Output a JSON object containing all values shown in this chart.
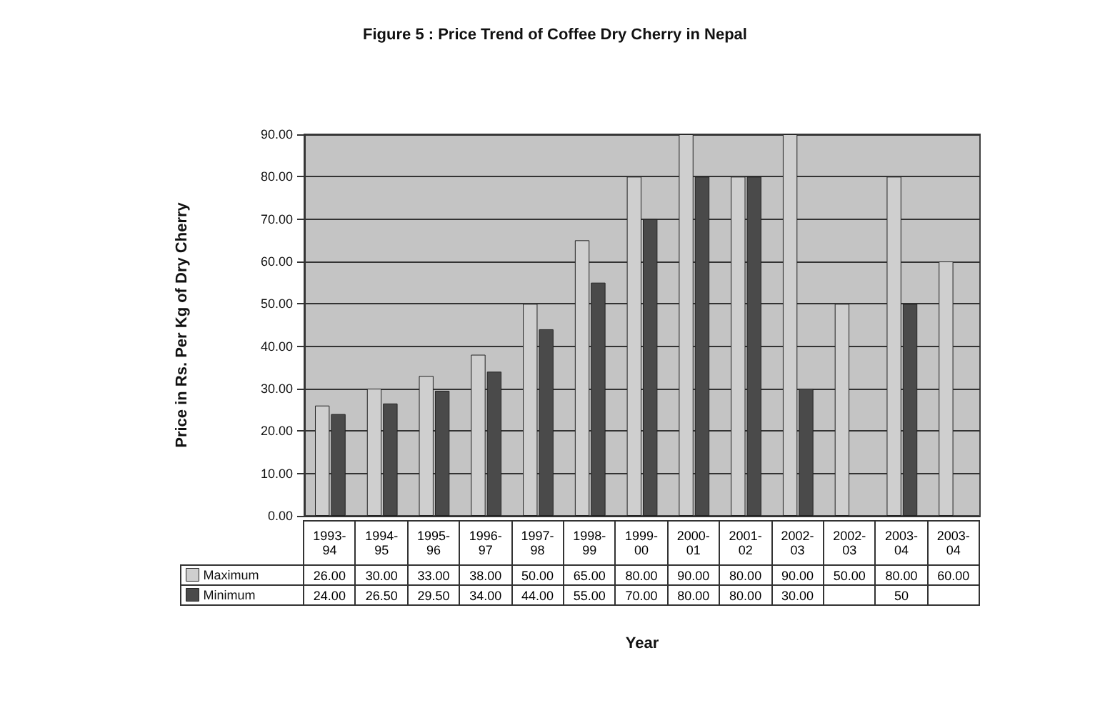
{
  "chart_data": {
    "type": "bar",
    "title": "Figure 5 : Price Trend of Coffee Dry Cherry in Nepal",
    "xlabel": "Year",
    "ylabel": "Price in Rs. Per Kg of Dry Cherry",
    "categories": [
      "1993-94",
      "1994-95",
      "1995-96",
      "1996-97",
      "1997-98",
      "1998-99",
      "1999-00",
      "2000-01",
      "2001-02",
      "2002-03",
      "2002-03",
      "2003-04",
      "2003-04"
    ],
    "series": [
      {
        "name": "Maximum",
        "color": "#cfcfcf",
        "values": [
          26,
          30,
          33,
          38,
          50,
          65,
          80,
          90,
          80,
          90,
          50,
          80,
          60
        ],
        "value_labels": [
          "26.00",
          "30.00",
          "33.00",
          "38.00",
          "50.00",
          "65.00",
          "80.00",
          "90.00",
          "80.00",
          "90.00",
          "50.00",
          "80.00",
          "60.00"
        ]
      },
      {
        "name": "Minimum",
        "color": "#4a4a4a",
        "values": [
          24,
          26.5,
          29.5,
          34,
          44,
          55,
          70,
          80,
          80,
          30,
          null,
          50,
          null
        ],
        "value_labels": [
          "24.00",
          "26.50",
          "29.50",
          "34.00",
          "44.00",
          "55.00",
          "70.00",
          "80.00",
          "80.00",
          "30.00",
          null,
          "50",
          null
        ]
      }
    ],
    "ylim": [
      0,
      90
    ],
    "yticks": [
      {
        "value": 0,
        "label": "0.00"
      },
      {
        "value": 10,
        "label": "10.00"
      },
      {
        "value": 20,
        "label": "20.00"
      },
      {
        "value": 30,
        "label": "30.00"
      },
      {
        "value": 40,
        "label": "40.00"
      },
      {
        "value": 50,
        "label": "50.00"
      },
      {
        "value": 60,
        "label": "60.00"
      },
      {
        "value": 70,
        "label": "70.00"
      },
      {
        "value": 80,
        "label": "80.00"
      },
      {
        "value": 90,
        "label": "90.00"
      }
    ],
    "grid": "y",
    "legend": "bottom"
  }
}
